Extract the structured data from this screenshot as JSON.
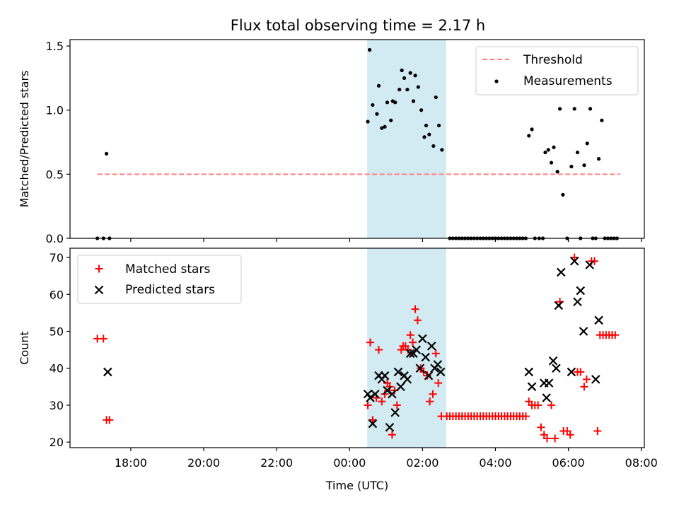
{
  "title": "Flux total observing time = 2.17 h",
  "colors": {
    "threshold": "#ff8080",
    "measurement": "#000000",
    "matched": "#ff0000",
    "predicted": "#000000",
    "span": "#add8e6"
  },
  "chart_data": [
    {
      "type": "scatter",
      "name": "ratio-panel",
      "ylabel": "Matched/Predicted stars",
      "xlabel": "",
      "ylim": [
        0,
        1.55
      ],
      "yticks": [
        "0.0",
        "0.5",
        "1.0",
        "1.5"
      ],
      "ytick_values": [
        0,
        0.5,
        1.0,
        1.5
      ],
      "shaded_span": [
        "00:29",
        "02:39"
      ],
      "threshold": {
        "name": "Threshold",
        "value": 0.5,
        "x_start": "17:05",
        "x_end": "07:25"
      },
      "legend": {
        "placement": "upper right",
        "entries": [
          "Threshold",
          "Measurements"
        ]
      },
      "series": [
        {
          "name": "Measurements",
          "points": [
            [
              "17:05",
              0
            ],
            [
              "17:15",
              0
            ],
            [
              "17:20",
              0.66
            ],
            [
              "17:25",
              0
            ],
            [
              "00:30",
              0.91
            ],
            [
              "00:33",
              1.47
            ],
            [
              "00:38",
              1.04
            ],
            [
              "00:45",
              0.97
            ],
            [
              "00:48",
              1.19
            ],
            [
              "00:53",
              0.86
            ],
            [
              "00:58",
              0.87
            ],
            [
              "01:02",
              1.06
            ],
            [
              "01:08",
              0.92
            ],
            [
              "01:11",
              1.07
            ],
            [
              "01:15",
              1.06
            ],
            [
              "01:22",
              1.16
            ],
            [
              "01:26",
              1.31
            ],
            [
              "01:30",
              1.25
            ],
            [
              "01:35",
              1.16
            ],
            [
              "01:40",
              1.29
            ],
            [
              "01:45",
              1.07
            ],
            [
              "01:48",
              1.27
            ],
            [
              "01:53",
              1.18
            ],
            [
              "01:58",
              1.0
            ],
            [
              "02:03",
              0.79
            ],
            [
              "02:06",
              0.88
            ],
            [
              "02:11",
              0.81
            ],
            [
              "02:18",
              0.72
            ],
            [
              "02:22",
              1.1
            ],
            [
              "02:27",
              0.88
            ],
            [
              "02:32",
              0.69
            ],
            [
              "02:45",
              0
            ],
            [
              "02:50",
              0
            ],
            [
              "02:55",
              0
            ],
            [
              "03:00",
              0
            ],
            [
              "03:05",
              0
            ],
            [
              "03:10",
              0
            ],
            [
              "03:15",
              0
            ],
            [
              "03:20",
              0
            ],
            [
              "03:25",
              0
            ],
            [
              "03:30",
              0
            ],
            [
              "03:35",
              0
            ],
            [
              "03:40",
              0
            ],
            [
              "03:45",
              0
            ],
            [
              "03:50",
              0
            ],
            [
              "03:55",
              0
            ],
            [
              "04:00",
              0
            ],
            [
              "04:05",
              0
            ],
            [
              "04:10",
              0
            ],
            [
              "04:15",
              0
            ],
            [
              "04:20",
              0
            ],
            [
              "04:25",
              0
            ],
            [
              "04:30",
              0
            ],
            [
              "04:35",
              0
            ],
            [
              "04:40",
              0
            ],
            [
              "04:45",
              0
            ],
            [
              "04:50",
              0
            ],
            [
              "04:55",
              0.8
            ],
            [
              "05:00",
              0.85
            ],
            [
              "05:05",
              0
            ],
            [
              "05:12",
              0
            ],
            [
              "05:18",
              0
            ],
            [
              "05:22",
              0.67
            ],
            [
              "05:27",
              0.69
            ],
            [
              "05:32",
              0.59
            ],
            [
              "05:36",
              0.71
            ],
            [
              "05:42",
              0.52
            ],
            [
              "05:46",
              1.01
            ],
            [
              "05:51",
              0.34
            ],
            [
              "05:58",
              0
            ],
            [
              "06:05",
              0.56
            ],
            [
              "06:10",
              1.01
            ],
            [
              "06:15",
              0.67
            ],
            [
              "06:20",
              0
            ],
            [
              "06:26",
              0.57
            ],
            [
              "06:31",
              0.74
            ],
            [
              "06:36",
              1.01
            ],
            [
              "06:40",
              0
            ],
            [
              "06:45",
              0
            ],
            [
              "06:50",
              0.62
            ],
            [
              "06:55",
              0.92
            ],
            [
              "07:00",
              0
            ],
            [
              "07:05",
              0
            ],
            [
              "07:10",
              0
            ],
            [
              "07:15",
              0
            ],
            [
              "07:20",
              0
            ]
          ]
        }
      ]
    },
    {
      "type": "scatter",
      "name": "count-panel",
      "ylabel": "Count",
      "xlabel": "Time (UTC)",
      "xlim": [
        "16:20",
        "08:05"
      ],
      "xticks": [
        "18:00",
        "20:00",
        "22:00",
        "00:00",
        "02:00",
        "04:00",
        "06:00",
        "08:00"
      ],
      "ylim": [
        18.5,
        72.5
      ],
      "yticks": [
        "20",
        "30",
        "40",
        "50",
        "60",
        "70"
      ],
      "ytick_values": [
        20,
        30,
        40,
        50,
        60,
        70
      ],
      "shaded_span": [
        "00:29",
        "02:39"
      ],
      "legend": {
        "placement": "upper left",
        "entries": [
          "Matched stars",
          "Predicted stars"
        ]
      },
      "series": [
        {
          "name": "Matched stars",
          "marker": "plus",
          "points": [
            [
              "17:05",
              48
            ],
            [
              "17:15",
              48
            ],
            [
              "17:20",
              26
            ],
            [
              "17:25",
              26
            ],
            [
              "00:30",
              30
            ],
            [
              "00:34",
              47
            ],
            [
              "00:38",
              26
            ],
            [
              "00:44",
              32
            ],
            [
              "00:48",
              45
            ],
            [
              "00:53",
              31
            ],
            [
              "00:58",
              33
            ],
            [
              "01:02",
              36
            ],
            [
              "01:06",
              35
            ],
            [
              "01:10",
              22
            ],
            [
              "01:14",
              34
            ],
            [
              "01:18",
              30
            ],
            [
              "01:25",
              45
            ],
            [
              "01:28",
              46
            ],
            [
              "01:32",
              46
            ],
            [
              "01:36",
              45
            ],
            [
              "01:40",
              49
            ],
            [
              "01:44",
              47
            ],
            [
              "01:48",
              56
            ],
            [
              "01:52",
              53
            ],
            [
              "01:57",
              40
            ],
            [
              "02:02",
              39
            ],
            [
              "02:08",
              38
            ],
            [
              "02:12",
              31
            ],
            [
              "02:17",
              33
            ],
            [
              "02:22",
              44
            ],
            [
              "02:26",
              36
            ],
            [
              "02:31",
              27
            ],
            [
              "02:40",
              27
            ],
            [
              "02:45",
              27
            ],
            [
              "02:50",
              27
            ],
            [
              "02:55",
              27
            ],
            [
              "03:00",
              27
            ],
            [
              "03:05",
              27
            ],
            [
              "03:10",
              27
            ],
            [
              "03:15",
              27
            ],
            [
              "03:20",
              27
            ],
            [
              "03:25",
              27
            ],
            [
              "03:30",
              27
            ],
            [
              "03:35",
              27
            ],
            [
              "03:40",
              27
            ],
            [
              "03:45",
              27
            ],
            [
              "03:50",
              27
            ],
            [
              "03:55",
              27
            ],
            [
              "04:00",
              27
            ],
            [
              "04:05",
              27
            ],
            [
              "04:10",
              27
            ],
            [
              "04:15",
              27
            ],
            [
              "04:20",
              27
            ],
            [
              "04:25",
              27
            ],
            [
              "04:30",
              27
            ],
            [
              "04:35",
              27
            ],
            [
              "04:40",
              27
            ],
            [
              "04:45",
              27
            ],
            [
              "04:50",
              27
            ],
            [
              "04:55",
              31
            ],
            [
              "05:00",
              30
            ],
            [
              "05:05",
              30
            ],
            [
              "05:10",
              30
            ],
            [
              "05:15",
              24
            ],
            [
              "05:20",
              22
            ],
            [
              "05:25",
              21
            ],
            [
              "05:32",
              30
            ],
            [
              "05:38",
              21
            ],
            [
              "05:46",
              58
            ],
            [
              "05:52",
              23
            ],
            [
              "05:58",
              23
            ],
            [
              "06:03",
              22
            ],
            [
              "06:10",
              70
            ],
            [
              "06:15",
              39
            ],
            [
              "06:20",
              39
            ],
            [
              "06:26",
              35
            ],
            [
              "06:30",
              37
            ],
            [
              "06:38",
              69
            ],
            [
              "06:43",
              69
            ],
            [
              "06:48",
              23
            ],
            [
              "06:52",
              49
            ],
            [
              "06:57",
              49
            ],
            [
              "07:02",
              49
            ],
            [
              "07:07",
              49
            ],
            [
              "07:12",
              49
            ],
            [
              "07:17",
              49
            ]
          ]
        },
        {
          "name": "Predicted stars",
          "marker": "x",
          "points": [
            [
              "17:22",
              39
            ],
            [
              "00:30",
              33
            ],
            [
              "00:34",
              32
            ],
            [
              "00:38",
              25
            ],
            [
              "00:42",
              33
            ],
            [
              "00:48",
              38
            ],
            [
              "00:53",
              37
            ],
            [
              "00:58",
              38
            ],
            [
              "01:02",
              34
            ],
            [
              "01:06",
              24
            ],
            [
              "01:10",
              33
            ],
            [
              "01:15",
              28
            ],
            [
              "01:20",
              39
            ],
            [
              "01:24",
              35
            ],
            [
              "01:30",
              38
            ],
            [
              "01:35",
              37
            ],
            [
              "01:40",
              44
            ],
            [
              "01:45",
              44
            ],
            [
              "01:50",
              45
            ],
            [
              "01:56",
              40
            ],
            [
              "02:00",
              48
            ],
            [
              "02:05",
              43
            ],
            [
              "02:10",
              38
            ],
            [
              "02:15",
              46
            ],
            [
              "02:20",
              40
            ],
            [
              "02:25",
              41
            ],
            [
              "02:30",
              39
            ],
            [
              "04:55",
              39
            ],
            [
              "05:00",
              35
            ],
            [
              "05:20",
              36
            ],
            [
              "05:24",
              32
            ],
            [
              "05:28",
              36
            ],
            [
              "05:35",
              42
            ],
            [
              "05:40",
              40
            ],
            [
              "05:44",
              57
            ],
            [
              "05:48",
              66
            ],
            [
              "06:05",
              39
            ],
            [
              "06:10",
              69
            ],
            [
              "06:15",
              58
            ],
            [
              "06:20",
              61
            ],
            [
              "06:25",
              50
            ],
            [
              "06:35",
              68
            ],
            [
              "06:45",
              37
            ],
            [
              "06:50",
              53
            ]
          ]
        }
      ]
    }
  ]
}
